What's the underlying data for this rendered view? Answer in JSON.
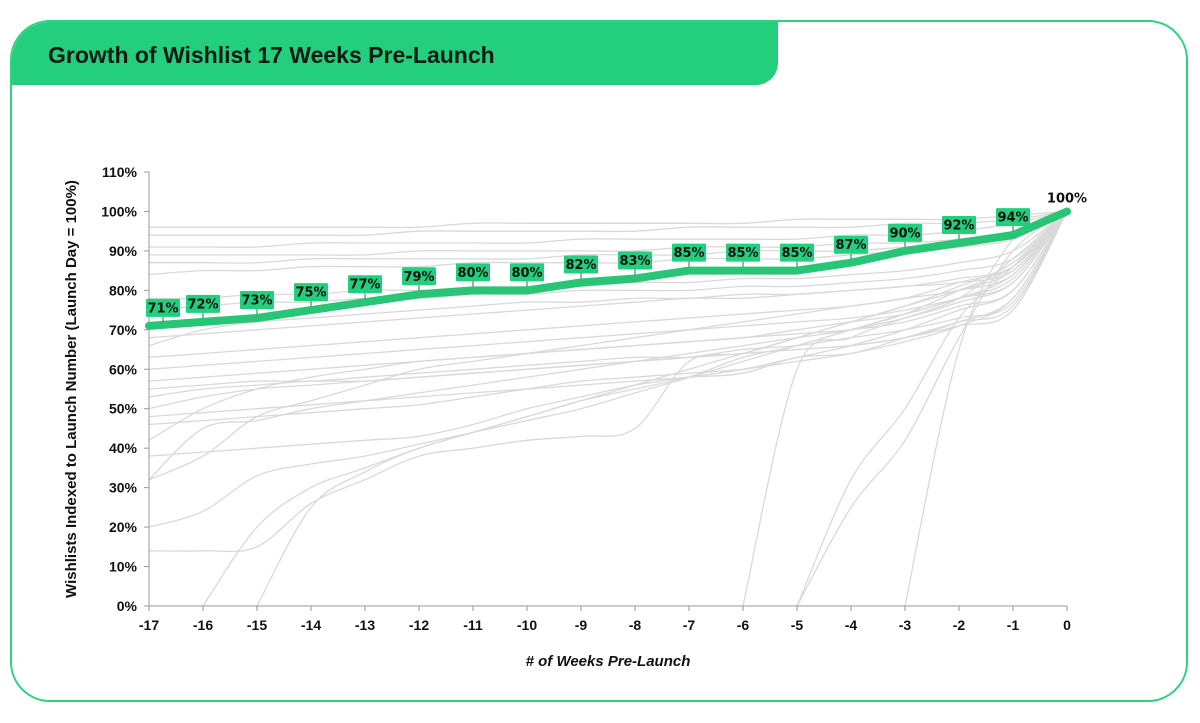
{
  "title": "Growth of Wishlist 17 Weeks Pre-Launch",
  "colors": {
    "accent": "#23cf7d",
    "main_series": "#27c575",
    "background_series": "#d9d9d9",
    "text": "#111111"
  },
  "chart_data": {
    "type": "line",
    "title": "Growth of Wishlist 17 Weeks Pre-Launch",
    "xlabel": "# of Weeks Pre-Launch",
    "ylabel": "Wishlists Indexed to Launch Number (Launch Day = 100%)",
    "x_ticks": [
      "-17",
      "-16",
      "-15",
      "-14",
      "-13",
      "-12",
      "-11",
      "-10",
      "-9",
      "-8",
      "-7",
      "-6",
      "-5",
      "-4",
      "-3",
      "-2",
      "-1",
      "0"
    ],
    "y_ticks": [
      "0%",
      "10%",
      "20%",
      "30%",
      "40%",
      "50%",
      "60%",
      "70%",
      "80%",
      "90%",
      "100%",
      "110%"
    ],
    "xlim": [
      -17,
      0
    ],
    "ylim": [
      0,
      110
    ],
    "grid": false,
    "legend": "none",
    "highlight_series": {
      "x": [
        -17,
        -16,
        -15,
        -14,
        -13,
        -12,
        -11,
        -10,
        -9,
        -8,
        -7,
        -6,
        -5,
        -4,
        -3,
        -2,
        -1,
        0
      ],
      "values": [
        71,
        72,
        73,
        75,
        77,
        79,
        80,
        80,
        82,
        83,
        85,
        85,
        85,
        87,
        90,
        92,
        94,
        100
      ],
      "labels": [
        "71%",
        "72%",
        "73%",
        "75%",
        "77%",
        "79%",
        "80%",
        "80%",
        "82%",
        "83%",
        "85%",
        "85%",
        "85%",
        "87%",
        "90%",
        "92%",
        "94%",
        "100%"
      ]
    },
    "background_series": [
      {
        "x": [
          -17,
          -16,
          -15,
          -14,
          -13,
          -12,
          -11,
          -10,
          -9,
          -8,
          -7,
          -6,
          -5,
          -4,
          -3,
          -2,
          -1,
          0
        ],
        "values": [
          96,
          96,
          96,
          96,
          96,
          96,
          97,
          97,
          97,
          97,
          97,
          97,
          98,
          98,
          98,
          98,
          99,
          100
        ]
      },
      {
        "x": [
          -17,
          -16,
          -15,
          -14,
          -13,
          -12,
          -11,
          -10,
          -9,
          -8,
          -7,
          -6,
          -5,
          -4,
          -3,
          -2,
          -1,
          0
        ],
        "values": [
          94,
          94,
          94,
          94,
          94,
          95,
          95,
          95,
          95,
          95,
          96,
          96,
          96,
          96,
          97,
          97,
          98,
          100
        ]
      },
      {
        "x": [
          -17,
          -16,
          -15,
          -14,
          -13,
          -12,
          -11,
          -10,
          -9,
          -8,
          -7,
          -6,
          -5,
          -4,
          -3,
          -2,
          -1,
          0
        ],
        "values": [
          91,
          91,
          91,
          92,
          92,
          92,
          92,
          92,
          93,
          93,
          93,
          93,
          93,
          94,
          94,
          95,
          97,
          100
        ]
      },
      {
        "x": [
          -17,
          -16,
          -15,
          -14,
          -13,
          -12,
          -11,
          -10,
          -9,
          -8,
          -7,
          -6,
          -5,
          -4,
          -3,
          -2,
          -1,
          0
        ],
        "values": [
          89,
          89,
          89,
          89,
          89,
          90,
          90,
          90,
          90,
          90,
          91,
          91,
          91,
          92,
          92,
          93,
          95,
          100
        ]
      },
      {
        "x": [
          -17,
          -16,
          -15,
          -14,
          -13,
          -12,
          -11,
          -10,
          -9,
          -8,
          -7,
          -6,
          -5,
          -4,
          -3,
          -2,
          -1,
          0
        ],
        "values": [
          87,
          87,
          87,
          88,
          88,
          88,
          88,
          88,
          89,
          89,
          89,
          90,
          90,
          90,
          91,
          92,
          94,
          100
        ]
      },
      {
        "x": [
          -17,
          -16,
          -15,
          -14,
          -13,
          -12,
          -11,
          -10,
          -9,
          -8,
          -7,
          -6,
          -5,
          -4,
          -3,
          -2,
          -1,
          0
        ],
        "values": [
          84,
          85,
          85,
          86,
          86,
          86,
          87,
          87,
          87,
          87,
          88,
          88,
          88,
          89,
          90,
          91,
          93,
          100
        ]
      },
      {
        "x": [
          -17,
          -16,
          -15,
          -14,
          -13,
          -12,
          -11,
          -10,
          -9,
          -8,
          -7,
          -6,
          -5,
          -4,
          -3,
          -2,
          -1,
          0
        ],
        "values": [
          78,
          78,
          79,
          79,
          80,
          80,
          80,
          81,
          81,
          82,
          82,
          83,
          83,
          84,
          85,
          87,
          90,
          100
        ]
      },
      {
        "x": [
          -17,
          -16,
          -15,
          -14,
          -13,
          -12,
          -11,
          -10,
          -9,
          -8,
          -7,
          -6,
          -5,
          -4,
          -3,
          -2,
          -1,
          0
        ],
        "values": [
          75,
          76,
          77,
          77,
          78,
          78,
          79,
          79,
          80,
          80,
          80,
          81,
          81,
          82,
          83,
          85,
          88,
          100
        ]
      },
      {
        "x": [
          -17,
          -16,
          -15,
          -14,
          -13,
          -12,
          -11,
          -10,
          -9,
          -8,
          -7,
          -6,
          -5,
          -4,
          -3,
          -2,
          -1,
          0
        ],
        "values": [
          68,
          69,
          70,
          71,
          72,
          73,
          74,
          75,
          76,
          77,
          78,
          78,
          79,
          80,
          81,
          83,
          86,
          100
        ]
      },
      {
        "x": [
          -17,
          -16,
          -15,
          -14,
          -13,
          -12,
          -11,
          -10,
          -9,
          -8,
          -7,
          -6,
          -5,
          -4,
          -3,
          -2,
          -1,
          0
        ],
        "values": [
          66,
          70,
          72,
          73,
          74,
          75,
          76,
          77,
          77,
          78,
          78,
          79,
          79,
          80,
          81,
          82,
          85,
          100
        ]
      },
      {
        "x": [
          -17,
          -16,
          -15,
          -14,
          -13,
          -12,
          -11,
          -10,
          -9,
          -8,
          -7,
          -6,
          -5,
          -4,
          -3,
          -2,
          -1,
          0
        ],
        "values": [
          63,
          64,
          65,
          66,
          67,
          68,
          69,
          70,
          71,
          72,
          73,
          74,
          75,
          76,
          78,
          80,
          84,
          100
        ]
      },
      {
        "x": [
          -17,
          -16,
          -15,
          -14,
          -13,
          -12,
          -11,
          -10,
          -9,
          -8,
          -7,
          -6,
          -5,
          -4,
          -3,
          -2,
          -1,
          0
        ],
        "values": [
          60,
          61,
          62,
          63,
          64,
          65,
          66,
          67,
          68,
          69,
          70,
          71,
          72,
          73,
          75,
          78,
          82,
          100
        ]
      },
      {
        "x": [
          -17,
          -16,
          -15,
          -14,
          -13,
          -12,
          -11,
          -10,
          -9,
          -8,
          -7,
          -6,
          -5,
          -4,
          -3,
          -2,
          -1,
          0
        ],
        "values": [
          57,
          58,
          59,
          60,
          61,
          62,
          63,
          64,
          65,
          66,
          67,
          68,
          69,
          70,
          72,
          76,
          80,
          100
        ]
      },
      {
        "x": [
          -17,
          -16,
          -15,
          -14,
          -13,
          -12,
          -11,
          -10,
          -9,
          -8,
          -7,
          -6,
          -5,
          -4,
          -3,
          -2,
          -1,
          0
        ],
        "values": [
          55,
          56,
          57,
          57,
          58,
          59,
          60,
          61,
          62,
          63,
          63,
          64,
          65,
          66,
          68,
          71,
          75,
          100
        ]
      },
      {
        "x": [
          -17,
          -16,
          -15,
          -14,
          -13,
          -12,
          -11,
          -10,
          -9,
          -8,
          -7,
          -6,
          -5,
          -4,
          -3,
          -2,
          -1,
          0
        ],
        "values": [
          50,
          53,
          55,
          56,
          57,
          58,
          59,
          60,
          61,
          62,
          63,
          65,
          66,
          68,
          70,
          73,
          77,
          100
        ]
      },
      {
        "x": [
          -17,
          -16,
          -15,
          -14,
          -13,
          -12,
          -11,
          -10,
          -9,
          -8,
          -7,
          -6,
          -5,
          -4,
          -3,
          -2,
          -1,
          0
        ],
        "values": [
          48,
          49,
          50,
          51,
          52,
          53,
          54,
          55,
          56,
          57,
          58,
          59,
          63,
          64,
          68,
          72,
          76,
          100
        ]
      },
      {
        "x": [
          -17,
          -16,
          -15,
          -14,
          -13,
          -12,
          -11,
          -10,
          -9,
          -8,
          -7,
          -6,
          -5,
          -4,
          -3,
          -2,
          -1,
          0
        ],
        "values": [
          46,
          47,
          48,
          49,
          50,
          51,
          53,
          55,
          57,
          58,
          59,
          60,
          62,
          64,
          67,
          71,
          78,
          100
        ]
      },
      {
        "x": [
          -17,
          -16,
          -15,
          -14,
          -13,
          -12,
          -11,
          -10,
          -9,
          -8,
          -7,
          -6,
          -5,
          -4,
          -3,
          -2,
          -1,
          0
        ],
        "values": [
          53,
          55,
          56,
          57,
          57,
          58,
          59,
          60,
          61,
          62,
          63,
          64,
          65,
          66,
          68,
          72,
          78,
          100
        ]
      },
      {
        "x": [
          -17,
          -16,
          -15,
          -14,
          -13,
          -12,
          -11,
          -10,
          -9,
          -8,
          -7,
          -6,
          -5,
          -4,
          -3,
          -2,
          -1,
          0
        ],
        "values": [
          42,
          50,
          55,
          58,
          60,
          62,
          63,
          64,
          65,
          66,
          67,
          68,
          70,
          72,
          74,
          78,
          83,
          100
        ]
      },
      {
        "x": [
          -17,
          -16,
          -15,
          -14,
          -13,
          -12,
          -11,
          -10,
          -9,
          -8,
          -7,
          -6,
          -5,
          -4,
          -3,
          -2,
          -1,
          0
        ],
        "values": [
          32,
          38,
          48,
          52,
          56,
          60,
          62,
          64,
          66,
          68,
          70,
          72,
          74,
          76,
          78,
          82,
          86,
          100
        ]
      },
      {
        "x": [
          -17,
          -16,
          -15,
          -14,
          -13,
          -12,
          -11,
          -10,
          -9,
          -8,
          -7,
          -6,
          -5,
          -4,
          -3,
          -2,
          -1,
          0
        ],
        "values": [
          32,
          45,
          47,
          50,
          52,
          54,
          56,
          58,
          60,
          62,
          64,
          66,
          68,
          70,
          73,
          77,
          82,
          100
        ]
      },
      {
        "x": [
          -17,
          -16,
          -15,
          -14,
          -13,
          -12,
          -11,
          -10,
          -9,
          -8,
          -7,
          -6,
          -5,
          -4,
          -3,
          -2,
          -1,
          0
        ],
        "values": [
          38,
          39,
          40,
          41,
          42,
          43,
          46,
          50,
          53,
          56,
          58,
          60,
          63,
          66,
          70,
          75,
          80,
          100
        ]
      },
      {
        "x": [
          -17,
          -16,
          -15,
          -14,
          -13,
          -12,
          -11,
          -10,
          -9,
          -8,
          -7,
          -6,
          -5,
          -4,
          -3,
          -2,
          -1,
          0
        ],
        "values": [
          20,
          24,
          33,
          36,
          38,
          41,
          44,
          47,
          50,
          54,
          58,
          63,
          66,
          70,
          74,
          78,
          84,
          100
        ]
      },
      {
        "x": [
          -17,
          -16,
          -15,
          -14,
          -13,
          -12,
          -11,
          -10,
          -9,
          -8,
          -7,
          -6,
          -5,
          -4,
          -3,
          -2,
          -1,
          0
        ],
        "values": [
          14,
          14,
          15,
          26,
          32,
          38,
          40,
          42,
          43,
          45,
          62,
          64,
          68,
          72,
          76,
          80,
          85,
          100
        ]
      },
      {
        "x": [
          -16,
          -15,
          -14,
          -13,
          -12,
          -11,
          -10,
          -9,
          -8,
          -7,
          -6,
          -5,
          -4,
          -3,
          -2,
          -1,
          0
        ],
        "values": [
          0,
          20,
          30,
          35,
          40,
          44,
          48,
          52,
          55,
          58,
          62,
          66,
          70,
          74,
          80,
          86,
          100
        ]
      },
      {
        "x": [
          -15,
          -14,
          -13,
          -12,
          -11,
          -10,
          -9,
          -8,
          -7,
          -6,
          -5,
          -4,
          -3,
          -2,
          -1,
          0
        ],
        "values": [
          0,
          25,
          34,
          40,
          44,
          48,
          52,
          56,
          60,
          64,
          68,
          72,
          76,
          81,
          87,
          100
        ]
      },
      {
        "x": [
          -6,
          -5,
          -4,
          -3,
          -2,
          -1,
          0
        ],
        "values": [
          0,
          60,
          68,
          73,
          78,
          88,
          100
        ]
      },
      {
        "x": [
          -5,
          -4,
          -3,
          -2,
          -1,
          0
        ],
        "values": [
          0,
          32,
          50,
          73,
          86,
          100
        ]
      },
      {
        "x": [
          -5,
          -4,
          -3,
          -2,
          -1,
          0
        ],
        "values": [
          0,
          25,
          42,
          68,
          90,
          100
        ]
      },
      {
        "x": [
          -3,
          -2,
          -1,
          0
        ],
        "values": [
          0,
          65,
          93,
          100
        ]
      }
    ]
  }
}
